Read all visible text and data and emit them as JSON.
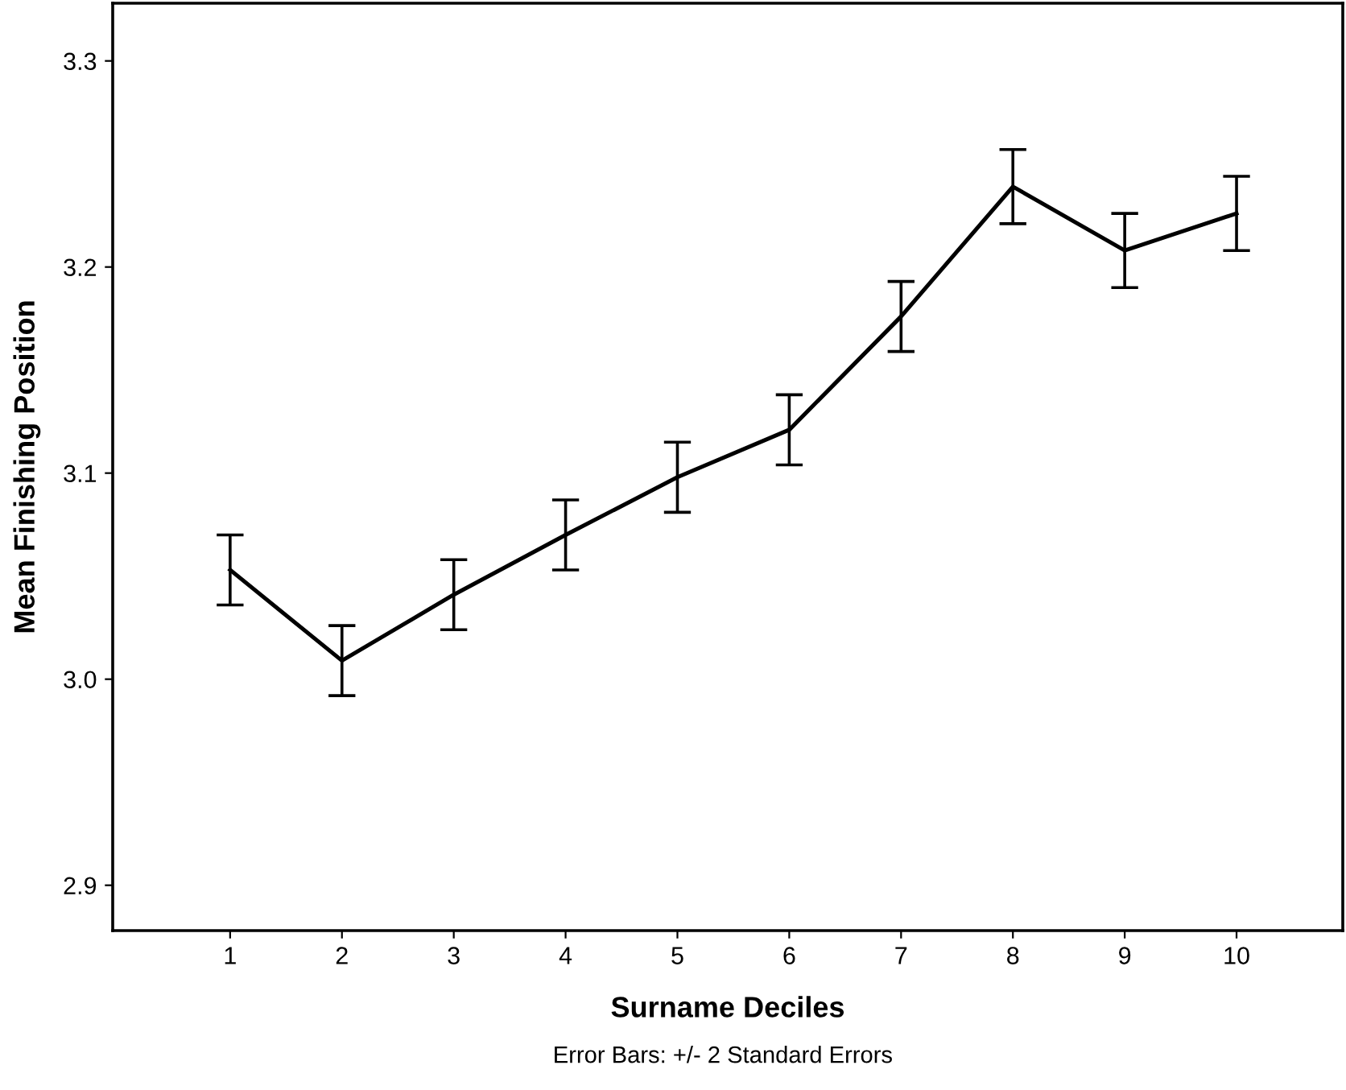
{
  "chart_data": {
    "type": "line",
    "xlabel": "Surname Deciles",
    "ylabel": "Mean Finishing Position",
    "categories": [
      "1",
      "2",
      "3",
      "4",
      "5",
      "6",
      "7",
      "8",
      "9",
      "10"
    ],
    "series": [
      {
        "color": "#000000",
        "values": [
          3.053,
          3.009,
          3.041,
          3.07,
          3.098,
          3.121,
          3.176,
          3.239,
          3.208,
          3.226
        ],
        "errors": [
          0.017,
          0.017,
          0.017,
          0.017,
          0.017,
          0.017,
          0.017,
          0.018,
          0.018,
          0.018
        ]
      }
    ],
    "ylim": [
      2.878,
      3.328
    ],
    "yticks": [
      2.9,
      {
        "value": 3,
        "label": "3.0"
      },
      3.1,
      3.2,
      3.3
    ],
    "annotations": [
      "Error Bars: +/- 2 Standard Errors"
    ],
    "grid": false,
    "legend": false,
    "marker": "none",
    "line_style": "solid"
  }
}
